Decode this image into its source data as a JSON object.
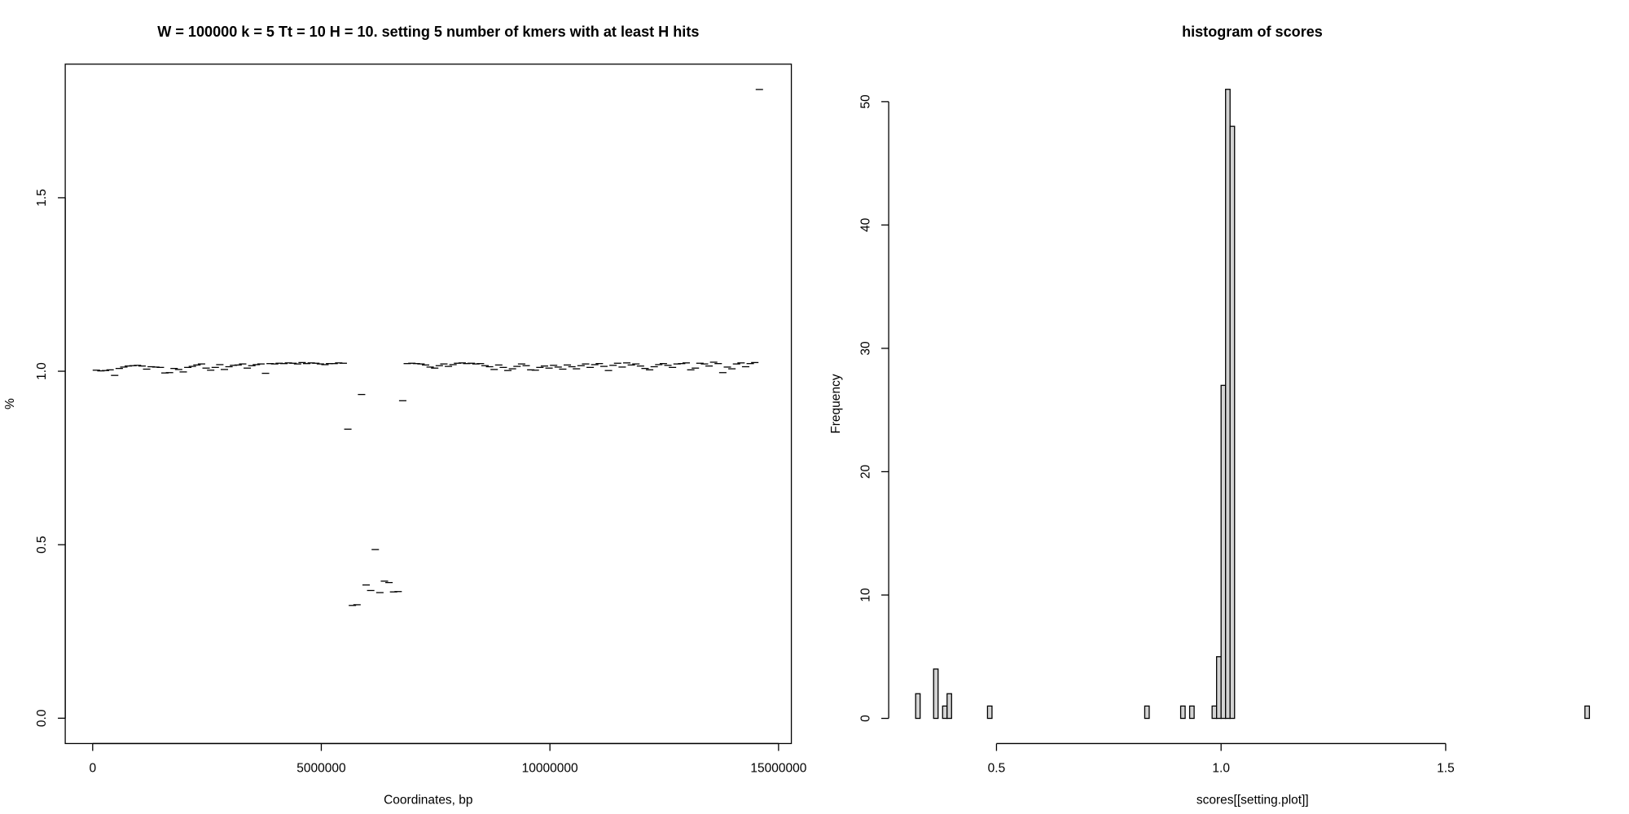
{
  "chart_data": [
    {
      "type": "scatter",
      "title": "W = 100000 k = 5 Tt = 10 H = 10. setting 5 number of kmers with at least H hits",
      "xlabel": "Coordinates, bp",
      "ylabel": "%",
      "color": "#000000",
      "x": [
        0,
        100000,
        200000,
        300000,
        400000,
        500000,
        600000,
        700000,
        800000,
        900000,
        1000000,
        1100000,
        1200000,
        1300000,
        1400000,
        1500000,
        1600000,
        1700000,
        1800000,
        1900000,
        2000000,
        2100000,
        2200000,
        2300000,
        2400000,
        2500000,
        2600000,
        2700000,
        2800000,
        2900000,
        3000000,
        3100000,
        3200000,
        3300000,
        3400000,
        3500000,
        3600000,
        3700000,
        3800000,
        3900000,
        4000000,
        4100000,
        4200000,
        4300000,
        4400000,
        4500000,
        4600000,
        4700000,
        4800000,
        4900000,
        5000000,
        5100000,
        5200000,
        5300000,
        5400000,
        5500000,
        5600000,
        5700000,
        5800000,
        5900000,
        6000000,
        6100000,
        6200000,
        6300000,
        6400000,
        6500000,
        6600000,
        6700000,
        6800000,
        6900000,
        7000000,
        7100000,
        7200000,
        7300000,
        7400000,
        7500000,
        7600000,
        7700000,
        7800000,
        7900000,
        8000000,
        8100000,
        8200000,
        8300000,
        8400000,
        8500000,
        8600000,
        8700000,
        8800000,
        8900000,
        9000000,
        9100000,
        9200000,
        9300000,
        9400000,
        9500000,
        9600000,
        9700000,
        9800000,
        9900000,
        10000000,
        10100000,
        10200000,
        10300000,
        10400000,
        10500000,
        10600000,
        10700000,
        10800000,
        10900000,
        11000000,
        11100000,
        11200000,
        11300000,
        11400000,
        11500000,
        11600000,
        11700000,
        11800000,
        11900000,
        12000000,
        12100000,
        12200000,
        12300000,
        12400000,
        12500000,
        12600000,
        12700000,
        12800000,
        12900000,
        13000000,
        13100000,
        13200000,
        13300000,
        13400000,
        13500000,
        13600000,
        13700000,
        13800000,
        13900000,
        14000000,
        14100000,
        14200000,
        14300000,
        14400000,
        14500000
      ],
      "values": [
        1.003,
        1.001,
        1.002,
        1.004,
        0.988,
        1.008,
        1.012,
        1.015,
        1.016,
        1.017,
        1.015,
        1.006,
        1.013,
        1.012,
        1.011,
        0.995,
        0.996,
        1.008,
        1.005,
        0.998,
        1.011,
        1.014,
        1.018,
        1.021,
        1.009,
        1.003,
        1.011,
        1.019,
        1.005,
        1.013,
        1.017,
        1.018,
        1.021,
        1.009,
        1.016,
        1.019,
        1.021,
        0.994,
        1.022,
        1.021,
        1.023,
        1.022,
        1.024,
        1.023,
        1.021,
        1.025,
        1.022,
        1.024,
        1.023,
        1.021,
        1.019,
        1.022,
        1.022,
        1.024,
        1.023,
        0.833,
        0.325,
        0.327,
        0.933,
        0.384,
        0.368,
        0.486,
        0.362,
        0.395,
        0.391,
        0.364,
        0.365,
        0.915,
        1.022,
        1.023,
        1.022,
        1.021,
        1.018,
        1.012,
        1.009,
        1.016,
        1.021,
        1.014,
        1.019,
        1.023,
        1.024,
        1.022,
        1.023,
        1.021,
        1.022,
        1.016,
        1.013,
        1.005,
        1.018,
        1.011,
        1.002,
        1.007,
        1.014,
        1.021,
        1.016,
        1.004,
        1.003,
        1.011,
        1.015,
        1.009,
        1.017,
        1.012,
        1.006,
        1.018,
        1.013,
        1.007,
        1.016,
        1.021,
        1.011,
        1.019,
        1.022,
        1.014,
        1.002,
        1.017,
        1.023,
        1.012,
        1.024,
        1.018,
        1.021,
        1.015,
        1.008,
        1.004,
        1.013,
        1.019,
        1.022,
        1.017,
        1.011,
        1.021,
        1.022,
        1.024,
        1.004,
        1.009,
        1.023,
        1.021,
        1.015,
        1.026,
        1.022,
        0.996,
        1.012,
        1.007,
        1.021,
        1.024,
        1.013,
        1.022,
        1.025,
        1.812
      ],
      "xlim": [
        -600000,
        15280000
      ],
      "ylim": [
        -0.073,
        1.885
      ],
      "xticks": [
        0,
        5000000,
        10000000,
        15000000
      ],
      "yticks": [
        {
          "value": 0,
          "label": "0.0"
        },
        {
          "value": 0.5,
          "label": "0.5"
        },
        {
          "value": 1,
          "label": "1.0"
        },
        {
          "value": 1.5,
          "label": "1.5"
        }
      ]
    },
    {
      "type": "histogram",
      "title": "histogram of scores",
      "xlabel": "scores[[setting.plot]]",
      "ylabel": "Frequency",
      "color": "#d3d3d3",
      "bins": [
        0.32,
        0.33,
        0.34,
        0.35,
        0.36,
        0.37,
        0.38,
        0.39,
        0.4,
        0.41,
        0.42,
        0.43,
        0.44,
        0.45,
        0.46,
        0.47,
        0.48,
        0.49,
        0.5,
        0.51,
        0.52,
        0.53,
        0.54,
        0.55,
        0.56,
        0.57,
        0.58,
        0.59,
        0.6,
        0.61,
        0.62,
        0.63,
        0.64,
        0.65,
        0.66,
        0.67,
        0.68,
        0.69,
        0.7,
        0.71,
        0.72,
        0.73,
        0.74,
        0.75,
        0.76,
        0.77,
        0.78,
        0.79,
        0.8,
        0.81,
        0.82,
        0.83,
        0.84,
        0.85,
        0.86,
        0.87,
        0.88,
        0.89,
        0.9,
        0.91,
        0.92,
        0.93,
        0.94,
        0.95,
        0.96,
        0.97,
        0.98,
        0.99,
        1.0,
        1.01,
        1.02,
        1.03,
        1.04,
        1.05,
        1.06,
        1.07,
        1.08,
        1.09,
        1.1,
        1.11,
        1.12,
        1.13,
        1.14,
        1.15,
        1.16,
        1.17,
        1.18,
        1.19,
        1.2,
        1.21,
        1.22,
        1.23,
        1.24,
        1.25,
        1.26,
        1.27,
        1.28,
        1.29,
        1.3,
        1.31,
        1.32,
        1.33,
        1.34,
        1.35,
        1.36,
        1.37,
        1.38,
        1.39,
        1.4,
        1.41,
        1.42,
        1.43,
        1.44,
        1.45,
        1.46,
        1.47,
        1.48,
        1.49,
        1.5,
        1.51,
        1.52,
        1.53,
        1.54,
        1.55,
        1.56,
        1.57,
        1.58,
        1.59,
        1.6,
        1.61,
        1.62,
        1.63,
        1.64,
        1.65,
        1.66,
        1.67,
        1.68,
        1.69,
        1.7,
        1.71,
        1.72,
        1.73,
        1.74,
        1.75,
        1.76,
        1.77,
        1.78,
        1.79,
        1.8,
        1.81,
        1.82
      ],
      "counts": [
        2,
        0,
        0,
        0,
        4,
        0,
        1,
        2,
        0,
        0,
        0,
        0,
        0,
        0,
        0,
        0,
        1,
        0,
        0,
        0,
        0,
        0,
        0,
        0,
        0,
        0,
        0,
        0,
        0,
        0,
        0,
        0,
        0,
        0,
        0,
        0,
        0,
        0,
        0,
        0,
        0,
        0,
        0,
        0,
        0,
        0,
        0,
        0,
        0,
        0,
        0,
        1,
        0,
        0,
        0,
        0,
        0,
        0,
        0,
        1,
        0,
        1,
        0,
        0,
        0,
        0,
        1,
        5,
        27,
        51,
        48,
        0,
        0,
        0,
        0,
        0,
        0,
        0,
        0,
        0,
        0,
        0,
        0,
        0,
        0,
        0,
        0,
        0,
        0,
        0,
        0,
        0,
        0,
        0,
        0,
        0,
        0,
        0,
        0,
        0,
        0,
        0,
        0,
        0,
        0,
        0,
        0,
        0,
        0,
        0,
        0,
        0,
        0,
        0,
        0,
        0,
        0,
        0,
        0,
        0,
        0,
        0,
        0,
        0,
        0,
        0,
        0,
        0,
        0,
        0,
        0,
        0,
        0,
        0,
        0,
        0,
        0,
        0,
        0,
        0,
        0,
        0,
        0,
        0,
        0,
        0,
        0,
        0,
        0,
        1
      ],
      "xlim": [
        0.26,
        1.88
      ],
      "ylim": [
        -2.04,
        53.04
      ],
      "xticks": [
        0.5,
        {
          "value": 1,
          "label": "1.0"
        },
        1.5
      ],
      "yticks": [
        0,
        10,
        20,
        30,
        40,
        50
      ]
    }
  ]
}
